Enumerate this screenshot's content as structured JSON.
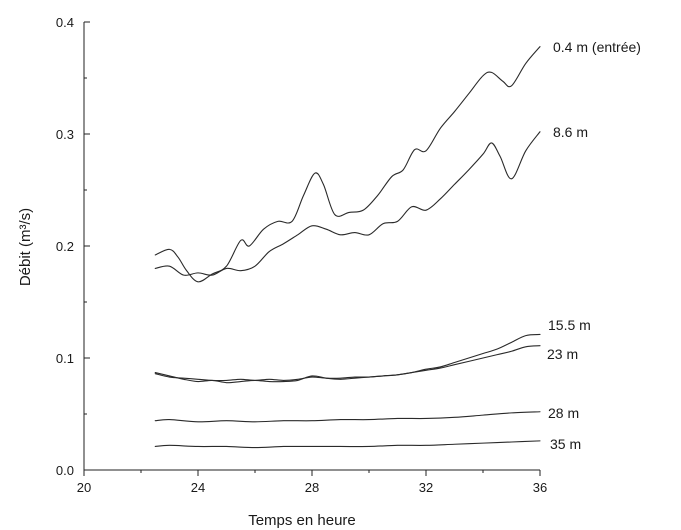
{
  "chart_data": {
    "type": "line",
    "title": "",
    "xlabel": "Temps en heure",
    "ylabel": "Débit (m³/s)",
    "xlim": [
      20,
      36
    ],
    "ylim": [
      0.0,
      0.4
    ],
    "x_ticks": [
      20,
      24,
      28,
      32,
      36
    ],
    "y_ticks": [
      0.0,
      0.1,
      0.2,
      0.3,
      0.4
    ],
    "x_tick_labels": [
      "20",
      "24",
      "28",
      "32",
      "36"
    ],
    "y_tick_labels": [
      "0.0",
      "0.1",
      "0.2",
      "0.3",
      "0.4"
    ],
    "grid": false,
    "legend": "inline labels at right end of each curve",
    "series": [
      {
        "name": "0.4 m (entrée)",
        "x": [
          22.5,
          23.0,
          23.3,
          23.6,
          24.0,
          24.5,
          25.0,
          25.5,
          25.8,
          26.3,
          26.8,
          27.3,
          27.7,
          28.1,
          28.4,
          28.8,
          29.3,
          29.8,
          30.3,
          30.8,
          31.2,
          31.6,
          32.0,
          32.5,
          33.0,
          33.5,
          34.0,
          34.3,
          34.7,
          35.0,
          35.5,
          36.0
        ],
        "y": [
          0.192,
          0.197,
          0.19,
          0.178,
          0.168,
          0.175,
          0.182,
          0.205,
          0.2,
          0.215,
          0.222,
          0.222,
          0.245,
          0.265,
          0.255,
          0.228,
          0.23,
          0.232,
          0.245,
          0.262,
          0.268,
          0.286,
          0.285,
          0.305,
          0.32,
          0.336,
          0.352,
          0.355,
          0.347,
          0.343,
          0.363,
          0.378
        ]
      },
      {
        "name": "8.6 m",
        "x": [
          22.5,
          23.0,
          23.5,
          24.0,
          24.5,
          25.0,
          25.5,
          26.0,
          26.5,
          27.0,
          27.5,
          28.0,
          28.5,
          29.0,
          29.5,
          30.0,
          30.5,
          31.0,
          31.5,
          32.0,
          32.5,
          33.0,
          33.5,
          34.0,
          34.3,
          34.6,
          35.0,
          35.5,
          36.0
        ],
        "y": [
          0.18,
          0.182,
          0.174,
          0.176,
          0.174,
          0.18,
          0.178,
          0.182,
          0.195,
          0.202,
          0.21,
          0.218,
          0.215,
          0.21,
          0.212,
          0.21,
          0.22,
          0.222,
          0.235,
          0.232,
          0.242,
          0.255,
          0.268,
          0.282,
          0.292,
          0.28,
          0.26,
          0.285,
          0.302
        ]
      },
      {
        "name": "15.5 m",
        "x": [
          22.5,
          23.0,
          23.5,
          24.0,
          24.5,
          25.0,
          25.5,
          26.0,
          26.5,
          27.0,
          27.5,
          28.0,
          28.5,
          29.0,
          29.5,
          30.0,
          30.5,
          31.0,
          31.5,
          32.0,
          32.5,
          33.0,
          33.5,
          34.0,
          34.5,
          35.0,
          35.5,
          36.0
        ],
        "y": [
          0.087,
          0.084,
          0.081,
          0.079,
          0.08,
          0.078,
          0.079,
          0.08,
          0.079,
          0.079,
          0.08,
          0.084,
          0.082,
          0.081,
          0.082,
          0.083,
          0.084,
          0.085,
          0.087,
          0.09,
          0.092,
          0.096,
          0.1,
          0.104,
          0.108,
          0.114,
          0.12,
          0.121
        ]
      },
      {
        "name": "23 m",
        "x": [
          22.5,
          23.0,
          23.5,
          24.0,
          24.5,
          25.0,
          25.5,
          26.0,
          26.5,
          27.0,
          27.5,
          28.0,
          28.5,
          29.0,
          29.5,
          30.0,
          30.5,
          31.0,
          31.5,
          32.0,
          32.5,
          33.0,
          33.5,
          34.0,
          34.5,
          35.0,
          35.5,
          36.0
        ],
        "y": [
          0.086,
          0.083,
          0.082,
          0.081,
          0.08,
          0.08,
          0.081,
          0.08,
          0.081,
          0.08,
          0.081,
          0.083,
          0.082,
          0.082,
          0.083,
          0.083,
          0.084,
          0.085,
          0.087,
          0.089,
          0.091,
          0.094,
          0.097,
          0.1,
          0.103,
          0.106,
          0.11,
          0.111
        ]
      },
      {
        "name": "28 m",
        "x": [
          22.5,
          23.0,
          24.0,
          25.0,
          26.0,
          27.0,
          28.0,
          29.0,
          30.0,
          31.0,
          32.0,
          33.0,
          34.0,
          35.0,
          36.0
        ],
        "y": [
          0.044,
          0.045,
          0.043,
          0.044,
          0.043,
          0.044,
          0.044,
          0.045,
          0.045,
          0.046,
          0.046,
          0.047,
          0.049,
          0.051,
          0.052
        ]
      },
      {
        "name": "35 m",
        "x": [
          22.5,
          23.0,
          24.0,
          25.0,
          26.0,
          27.0,
          28.0,
          29.0,
          30.0,
          31.0,
          32.0,
          33.0,
          34.0,
          35.0,
          36.0
        ],
        "y": [
          0.021,
          0.022,
          0.021,
          0.021,
          0.02,
          0.021,
          0.021,
          0.021,
          0.021,
          0.022,
          0.022,
          0.023,
          0.024,
          0.025,
          0.026
        ]
      }
    ]
  },
  "style": {
    "line_color": "#2a2a2a",
    "axis_color": "#222222",
    "background": "#ffffff"
  }
}
